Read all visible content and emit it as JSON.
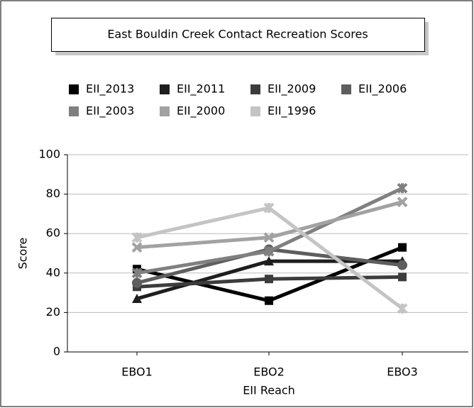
{
  "chart_data": {
    "type": "line",
    "title": "East Bouldin Creek Contact Recreation Scores",
    "x_label": "EII Reach",
    "y_label": "Score",
    "categories": [
      "EBO1",
      "EBO2",
      "EBO3"
    ],
    "series": [
      {
        "name": "EII_2013",
        "color": "#000000",
        "marker": "square",
        "values": [
          42,
          26,
          53
        ]
      },
      {
        "name": "EII_2011",
        "color": "#1e1e1e",
        "marker": "triangle",
        "values": [
          27,
          46,
          46
        ]
      },
      {
        "name": "EII_2009",
        "color": "#3c3c3c",
        "marker": "square",
        "values": [
          33,
          37,
          38
        ]
      },
      {
        "name": "EII_2006",
        "color": "#5e5e5e",
        "marker": "circle",
        "values": [
          35,
          52,
          44
        ]
      },
      {
        "name": "EII_2003",
        "color": "#808080",
        "marker": "star",
        "values": [
          40,
          51,
          83
        ]
      },
      {
        "name": "EII_2000",
        "color": "#a2a2a2",
        "marker": "x",
        "values": [
          53,
          58,
          76
        ]
      },
      {
        "name": "EII_1996",
        "color": "#c4c4c4",
        "marker": "star",
        "values": [
          58,
          73,
          22
        ]
      }
    ],
    "ylim": [
      0,
      100
    ],
    "yticks": [
      0,
      20,
      40,
      60,
      80,
      100
    ],
    "grid": true
  }
}
